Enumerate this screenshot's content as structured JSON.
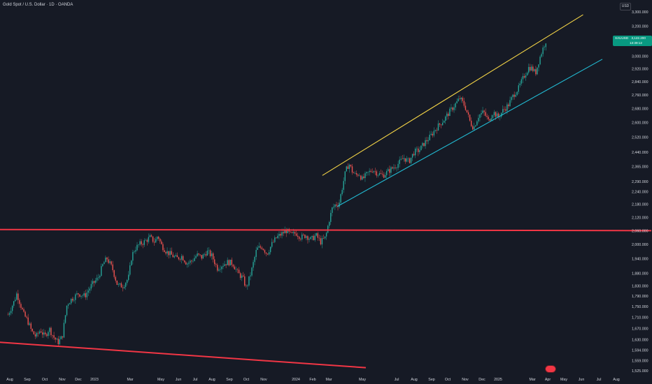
{
  "header": {
    "title": "Gold Spot / U.S. Dollar · 1D · OANDA",
    "currency": "USD"
  },
  "price_tag": {
    "symbol": "XAUUSD",
    "price": "3,122.200",
    "countdown": "13:39:12",
    "color": "#089981"
  },
  "colors": {
    "background": "#161a25",
    "up_candle": "#26a69a",
    "down_candle": "#ef5350",
    "upper_channel": "#f5d547",
    "lower_channel": "#22bcd4",
    "support_lines": "#f23645",
    "axis_text": "#d1d4dc"
  },
  "logo_icon": "tradingview-logo-icon",
  "chart_data": {
    "type": "candlestick",
    "title": "Gold Spot / U.S. Dollar · 1D · OANDA",
    "xlabel": "",
    "ylabel": "",
    "ylim": [
      1515,
      3330
    ],
    "y_scale": "log",
    "grid": false,
    "x_ticks": [
      {
        "label": "Aug",
        "t": 0
      },
      {
        "label": "Sep",
        "t": 1
      },
      {
        "label": "Oct",
        "t": 2
      },
      {
        "label": "Nov",
        "t": 3
      },
      {
        "label": "Dec",
        "t": 4
      },
      {
        "label": "2023",
        "t": 5
      },
      {
        "label": "Mar",
        "t": 7
      },
      {
        "label": "May",
        "t": 9
      },
      {
        "label": "Jun",
        "t": 10
      },
      {
        "label": "Jul",
        "t": 11
      },
      {
        "label": "Aug",
        "t": 12
      },
      {
        "label": "Sep",
        "t": 13
      },
      {
        "label": "Oct",
        "t": 14
      },
      {
        "label": "Nov",
        "t": 15
      },
      {
        "label": "2024",
        "t": 17
      },
      {
        "label": "Feb",
        "t": 18
      },
      {
        "label": "Mar",
        "t": 19
      },
      {
        "label": "May",
        "t": 21
      },
      {
        "label": "Jul",
        "t": 23
      },
      {
        "label": "Aug",
        "t": 24
      },
      {
        "label": "Sep",
        "t": 25
      },
      {
        "label": "Oct",
        "t": 26
      },
      {
        "label": "Nov",
        "t": 27
      },
      {
        "label": "Dec",
        "t": 28
      },
      {
        "label": "2025",
        "t": 29
      },
      {
        "label": "Mar",
        "t": 31
      },
      {
        "label": "Apr",
        "t": 32
      },
      {
        "label": "May",
        "t": 33
      },
      {
        "label": "Jun",
        "t": 34
      },
      {
        "label": "Jul",
        "t": 35
      },
      {
        "label": "Aug",
        "t": 36
      }
    ],
    "y_ticks": [
      "3,300.000",
      "3,200.000",
      "3,000.000",
      "2,920.000",
      "2,840.000",
      "2,760.000",
      "2,680.000",
      "2,600.000",
      "2,520.000",
      "2,440.000",
      "2,365.000",
      "2,290.000",
      "2,240.000",
      "2,180.000",
      "2,120.000",
      "2,060.000",
      "2,000.000",
      "1,940.000",
      "1,880.000",
      "1,830.000",
      "1,790.000",
      "1,750.000",
      "1,710.000",
      "1,670.000",
      "1,630.000",
      "1,594.000",
      "1,559.000",
      "1,525.000"
    ],
    "price_path": [
      [
        -0.1,
        1720
      ],
      [
        0.25,
        1770
      ],
      [
        0.4,
        1800
      ],
      [
        0.6,
        1760
      ],
      [
        0.8,
        1720
      ],
      [
        1.0,
        1700
      ],
      [
        1.25,
        1660
      ],
      [
        1.5,
        1640
      ],
      [
        1.75,
        1665
      ],
      [
        2.0,
        1640
      ],
      [
        2.25,
        1670
      ],
      [
        2.5,
        1640
      ],
      [
        2.75,
        1620
      ],
      [
        3.0,
        1640
      ],
      [
        3.3,
        1760
      ],
      [
        3.6,
        1780
      ],
      [
        4.0,
        1800
      ],
      [
        4.4,
        1790
      ],
      [
        4.8,
        1830
      ],
      [
        5.2,
        1860
      ],
      [
        5.5,
        1920
      ],
      [
        5.7,
        1940
      ],
      [
        6.0,
        1900
      ],
      [
        6.3,
        1830
      ],
      [
        6.6,
        1830
      ],
      [
        6.9,
        1860
      ],
      [
        7.1,
        1950
      ],
      [
        7.3,
        1980
      ],
      [
        7.6,
        2000
      ],
      [
        7.9,
        2010
      ],
      [
        8.3,
        2030
      ],
      [
        8.6,
        2010
      ],
      [
        8.8,
        2040
      ],
      [
        9.0,
        2000
      ],
      [
        9.3,
        1970
      ],
      [
        9.6,
        1955
      ],
      [
        9.9,
        1940
      ],
      [
        10.2,
        1950
      ],
      [
        10.5,
        1920
      ],
      [
        10.8,
        1930
      ],
      [
        11.1,
        1955
      ],
      [
        11.4,
        1945
      ],
      [
        11.7,
        1970
      ],
      [
        12.0,
        1950
      ],
      [
        12.3,
        1900
      ],
      [
        12.6,
        1915
      ],
      [
        12.9,
        1925
      ],
      [
        13.2,
        1920
      ],
      [
        13.5,
        1880
      ],
      [
        13.8,
        1860
      ],
      [
        14.0,
        1820
      ],
      [
        14.3,
        1890
      ],
      [
        14.6,
        1980
      ],
      [
        14.9,
        1990
      ],
      [
        15.2,
        1960
      ],
      [
        15.5,
        2000
      ],
      [
        15.8,
        2030
      ],
      [
        16.1,
        2045
      ],
      [
        16.4,
        2060
      ],
      [
        16.7,
        2040
      ],
      [
        17.0,
        2050
      ],
      [
        17.3,
        2030
      ],
      [
        17.6,
        2040
      ],
      [
        17.9,
        2020
      ],
      [
        18.2,
        2040
      ],
      [
        18.5,
        2010
      ],
      [
        18.8,
        2030
      ],
      [
        19.0,
        2100
      ],
      [
        19.2,
        2160
      ],
      [
        19.4,
        2180
      ],
      [
        19.6,
        2180
      ],
      [
        19.8,
        2260
      ],
      [
        20.0,
        2340
      ],
      [
        20.2,
        2380
      ],
      [
        20.4,
        2340
      ],
      [
        20.6,
        2320
      ],
      [
        20.8,
        2330
      ],
      [
        21.0,
        2300
      ],
      [
        21.3,
        2330
      ],
      [
        21.6,
        2350
      ],
      [
        21.9,
        2330
      ],
      [
        22.2,
        2320
      ],
      [
        22.5,
        2340
      ],
      [
        22.8,
        2360
      ],
      [
        23.1,
        2380
      ],
      [
        23.4,
        2410
      ],
      [
        23.7,
        2390
      ],
      [
        24.0,
        2440
      ],
      [
        24.3,
        2450
      ],
      [
        24.6,
        2490
      ],
      [
        24.9,
        2520
      ],
      [
        25.2,
        2560
      ],
      [
        25.5,
        2590
      ],
      [
        25.8,
        2620
      ],
      [
        26.1,
        2660
      ],
      [
        26.4,
        2700
      ],
      [
        26.7,
        2740
      ],
      [
        27.0,
        2690
      ],
      [
        27.3,
        2600
      ],
      [
        27.5,
        2570
      ],
      [
        27.8,
        2640
      ],
      [
        28.1,
        2660
      ],
      [
        28.4,
        2610
      ],
      [
        28.7,
        2660
      ],
      [
        29.0,
        2630
      ],
      [
        29.3,
        2670
      ],
      [
        29.6,
        2700
      ],
      [
        29.9,
        2760
      ],
      [
        30.2,
        2800
      ],
      [
        30.5,
        2870
      ],
      [
        30.8,
        2930
      ],
      [
        31.0,
        2920
      ],
      [
        31.2,
        2890
      ],
      [
        31.45,
        2980
      ],
      [
        31.65,
        3040
      ],
      [
        31.8,
        3080
      ],
      [
        31.95,
        3120
      ]
    ],
    "lines": [
      {
        "name": "",
        "color": "#f5d547",
        "points": [
          [
            18.6,
            2320
          ],
          [
            34.1,
            3280
          ]
        ]
      },
      {
        "name": "",
        "color": "#22bcd4",
        "points": [
          [
            19.5,
            2170
          ],
          [
            35.2,
            2980
          ]
        ]
      },
      {
        "name": "",
        "color": "#f23645",
        "points": [
          [
            -1,
            2065
          ],
          [
            38,
            2060
          ]
        ]
      },
      {
        "name": "",
        "color": "#f23645",
        "points": [
          [
            -1,
            1623
          ],
          [
            21.2,
            1535
          ]
        ]
      }
    ]
  }
}
